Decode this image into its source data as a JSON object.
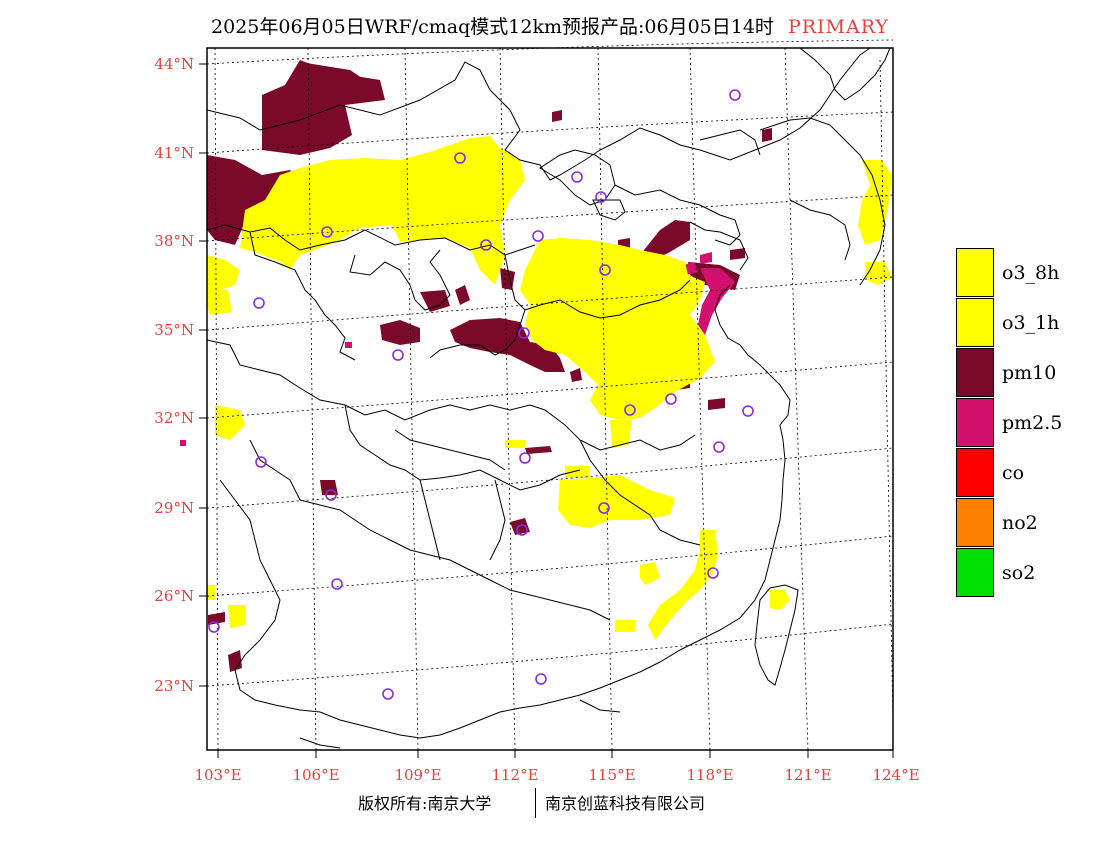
{
  "title": {
    "main": "2025年06月05日WRF/cmaq模式12km预报产品:06月05日14时",
    "tag": "PRIMARY"
  },
  "axes": {
    "lat_labels": [
      "44°N",
      "41°N",
      "38°N",
      "35°N",
      "32°N",
      "29°N",
      "26°N",
      "23°N"
    ],
    "lon_labels": [
      "103°E",
      "106°E",
      "109°E",
      "112°E",
      "115°E",
      "118°E",
      "121°E",
      "124°E"
    ]
  },
  "legend": [
    {
      "label": "o3_8h",
      "color": "#ffff00"
    },
    {
      "label": "o3_1h",
      "color": "#ffff00"
    },
    {
      "label": "pm10",
      "color": "#7b0a2a"
    },
    {
      "label": "pm2.5",
      "color": "#d4106e"
    },
    {
      "label": "co",
      "color": "#ff0000"
    },
    {
      "label": "no2",
      "color": "#ff7f00"
    },
    {
      "label": "so2",
      "color": "#00e000"
    }
  ],
  "footer": {
    "left": "版权所有:南京大学",
    "right": "南京创蓝科技有限公司"
  },
  "colors": {
    "axis_label": "#e8403a",
    "station_marker": "#8a2be2"
  }
}
